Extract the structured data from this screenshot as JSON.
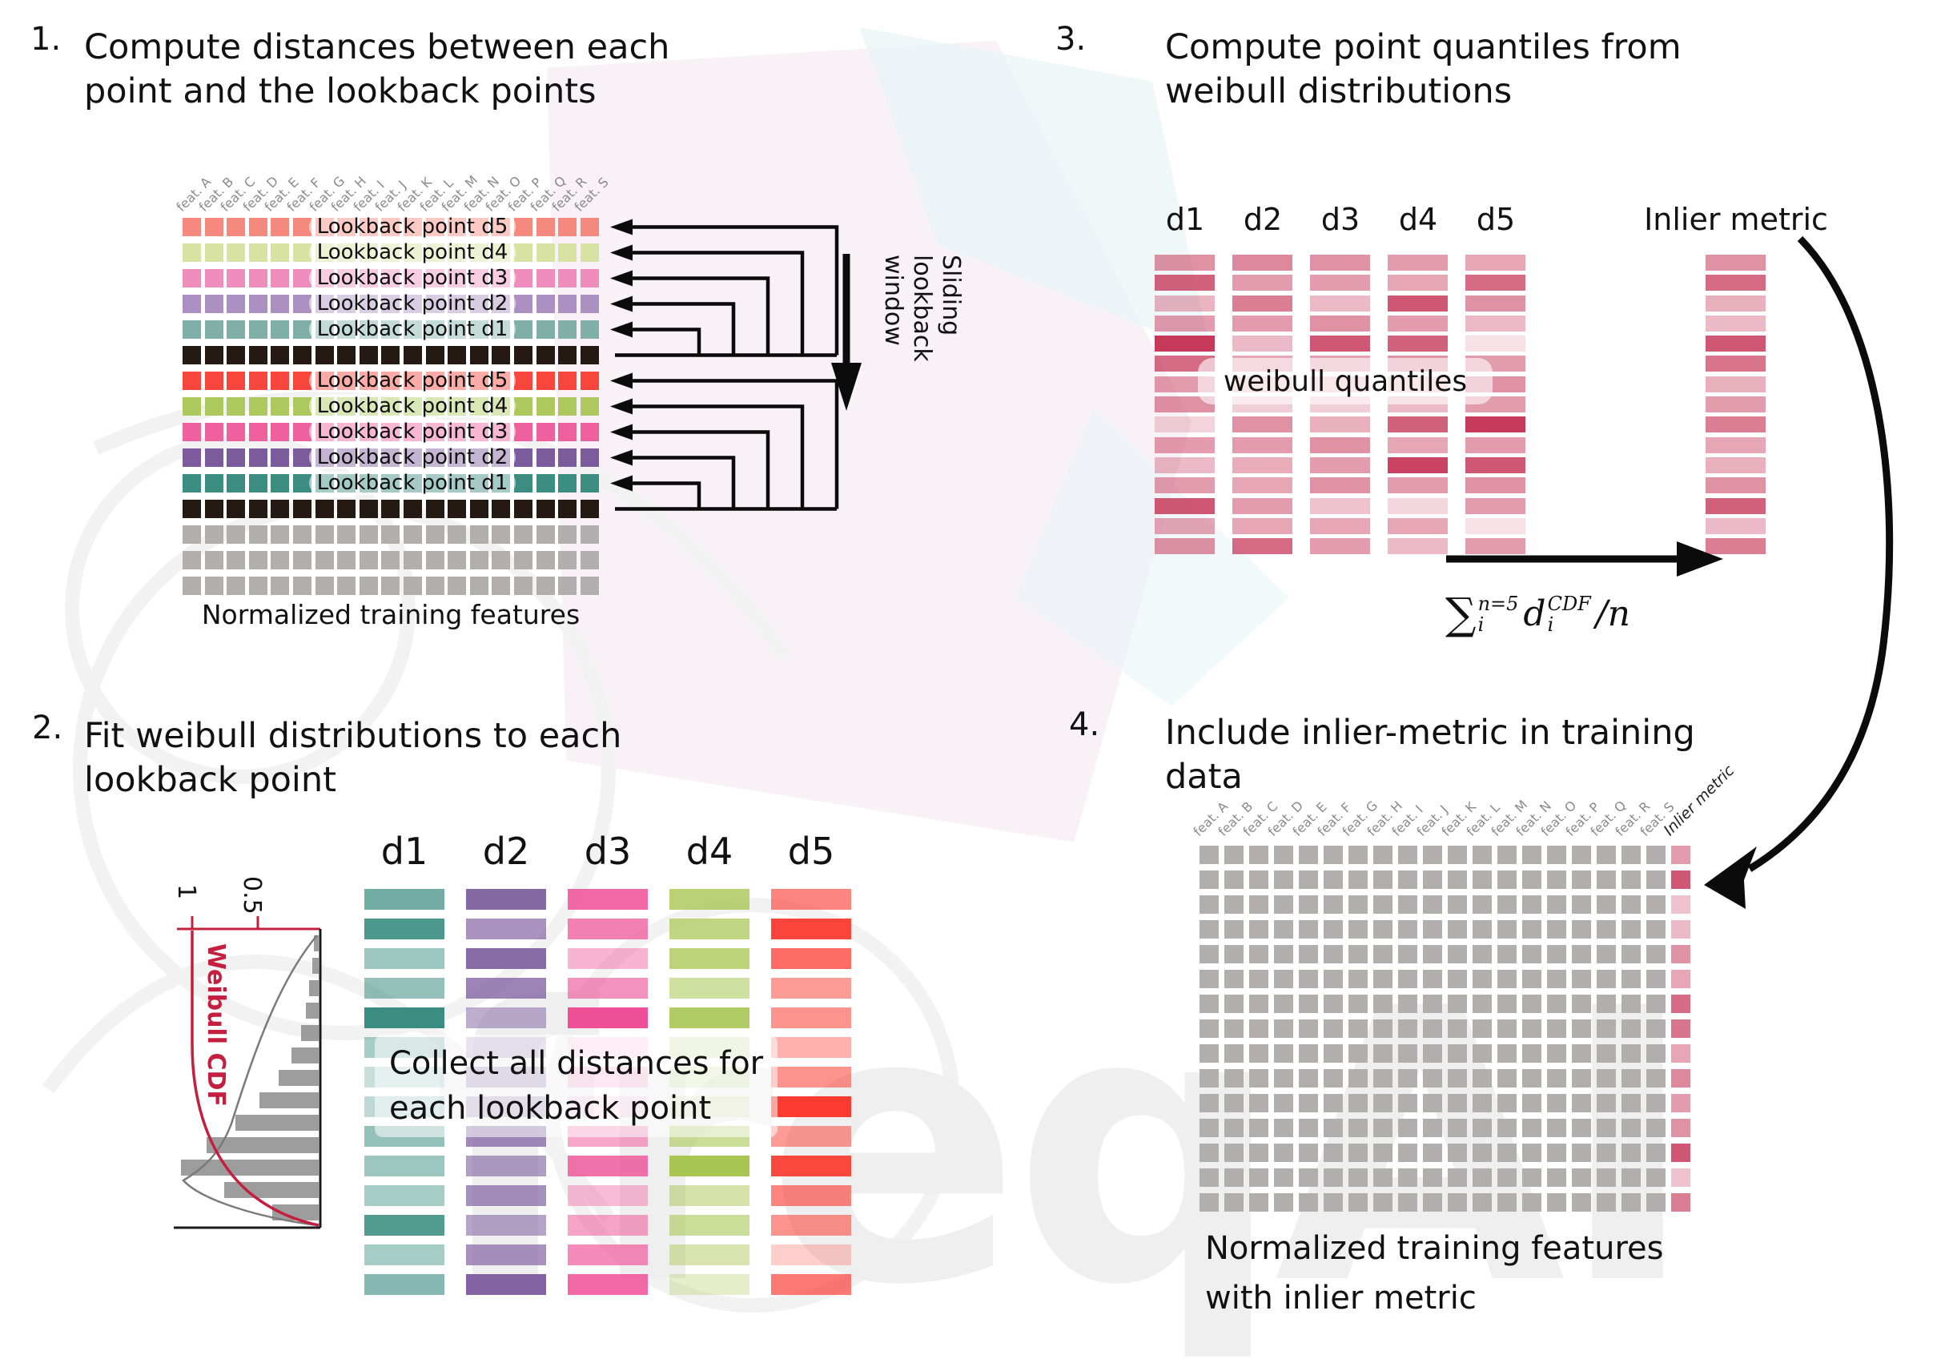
{
  "watermark": {
    "text": "freqAI"
  },
  "features": [
    "feat. A",
    "feat. B",
    "feat. C",
    "feat. D",
    "feat. E",
    "feat. F",
    "feat. G",
    "feat. H",
    "feat. I",
    "feat. J",
    "feat. K",
    "feat. L",
    "feat. M",
    "feat. N",
    "feat. O",
    "feat. P",
    "feat. Q",
    "feat. R",
    "feat. S"
  ],
  "steps": {
    "s1": {
      "number": "1.",
      "title": [
        "Compute distances between each",
        "point and the lookback points"
      ],
      "caption": "Normalized training features",
      "sliding": [
        "Sliding",
        "lookback",
        "window"
      ]
    },
    "s2": {
      "number": "2.",
      "title": [
        "Fit weibull distributions to each",
        "lookback point"
      ],
      "overlay": [
        "Collect all distances for",
        "each lookback point"
      ],
      "plot": {
        "cdf_label": "Weibull CDF",
        "ticks": [
          "1",
          "0.5"
        ]
      }
    },
    "s3": {
      "number": "3.",
      "title": [
        "Compute point quantiles from",
        "weibull distributions"
      ],
      "overlay": "weibull quantiles",
      "inlier_label": "Inlier metric",
      "formula": {
        "sum": "∑",
        "sum_sup": "n=5",
        "sum_sub": "i",
        "d": "d",
        "d_sup": "CDF",
        "d_sub": "i",
        "tail": "/n"
      }
    },
    "s4": {
      "number": "4.",
      "title": [
        "Include inlier-metric in training",
        "data"
      ],
      "caption": [
        "Normalized training features",
        "with inlier metric"
      ],
      "inlier_label": "Inlier metric"
    }
  },
  "colors": {
    "black_row": "#241a13",
    "gray_row": "#b3aeae",
    "crimson": "#c7395b",
    "cdf_red": "#c41f3e",
    "hist_gray": "#8f8f8f",
    "arrow_black": "#0b0b0b",
    "feat_label_gray": "#8a8a8a"
  },
  "grid1": {
    "rows": [
      {
        "color": "#f6897e",
        "label": "Lookback point d5"
      },
      {
        "color": "#d8e2a2",
        "label": "Lookback point d4"
      },
      {
        "color": "#ef8ebc",
        "label": "Lookback point d3"
      },
      {
        "color": "#ab90c1",
        "label": "Lookback point d2"
      },
      {
        "color": "#7fafa7",
        "label": "Lookback point d1"
      },
      {
        "color": "#241a13",
        "label": ""
      },
      {
        "color": "#f9463c",
        "label": "Lookback point d5"
      },
      {
        "color": "#adc95d",
        "label": "Lookback point d4"
      },
      {
        "color": "#ee609e",
        "label": "Lookback point d3"
      },
      {
        "color": "#7c5b9d",
        "label": "Lookback point d2"
      },
      {
        "color": "#3a8d80",
        "label": "Lookback point d1"
      },
      {
        "color": "#241a13",
        "label": ""
      },
      {
        "color": "#b3aeae",
        "label": ""
      },
      {
        "color": "#b3aeae",
        "label": ""
      },
      {
        "color": "#b3aeae",
        "label": ""
      }
    ]
  },
  "grid2": {
    "columns": [
      {
        "name": "d1",
        "color": "#3a8d80",
        "opacities": [
          0.72,
          0.9,
          0.5,
          0.55,
          1.0,
          0.45,
          0.28,
          0.33,
          0.55,
          0.5,
          0.45,
          0.88,
          0.45,
          0.62
        ]
      },
      {
        "name": "d2",
        "color": "#7c5b9d",
        "opacities": [
          0.92,
          0.66,
          0.9,
          0.75,
          0.5,
          0.38,
          0.45,
          0.4,
          0.72,
          0.6,
          0.68,
          0.55,
          0.66,
          0.95
        ]
      },
      {
        "name": "d3",
        "color": "#ee4f96",
        "opacities": [
          0.85,
          0.72,
          0.42,
          0.62,
          1.0,
          0.2,
          0.3,
          0.16,
          0.5,
          0.8,
          0.38,
          0.52,
          0.66,
          0.85
        ]
      },
      {
        "name": "d4",
        "color": "#a9c653",
        "opacities": [
          0.8,
          0.72,
          0.78,
          0.55,
          0.9,
          0.35,
          0.3,
          0.25,
          0.6,
          1.0,
          0.5,
          0.6,
          0.45,
          0.3
        ]
      },
      {
        "name": "d5",
        "color": "#fb3a30",
        "opacities": [
          0.62,
          0.95,
          0.75,
          0.5,
          0.55,
          0.4,
          0.55,
          1.0,
          0.5,
          0.92,
          0.62,
          0.55,
          0.25,
          0.68
        ]
      }
    ]
  },
  "grid3": {
    "bar_color": "#c7395b",
    "columns": [
      {
        "name": "d1",
        "opacities": [
          0.55,
          0.8,
          0.38,
          0.5,
          1.0,
          0.75,
          0.5,
          0.55,
          0.22,
          0.5,
          0.35,
          0.5,
          0.85,
          0.45,
          0.55
        ]
      },
      {
        "name": "d2",
        "opacities": [
          0.6,
          0.5,
          0.65,
          0.5,
          0.35,
          0.45,
          0.3,
          0.25,
          0.55,
          0.5,
          0.42,
          0.45,
          0.5,
          0.45,
          0.75
        ]
      },
      {
        "name": "d3",
        "opacities": [
          0.55,
          0.5,
          0.35,
          0.55,
          0.85,
          0.48,
          0.3,
          0.25,
          0.4,
          0.55,
          0.5,
          0.55,
          0.3,
          0.45,
          0.5
        ]
      },
      {
        "name": "d4",
        "opacities": [
          0.5,
          0.45,
          0.85,
          0.5,
          0.8,
          0.55,
          0.3,
          0.35,
          0.8,
          0.45,
          0.95,
          0.5,
          0.2,
          0.45,
          0.35
        ]
      },
      {
        "name": "d5",
        "opacities": [
          0.45,
          0.75,
          0.55,
          0.35,
          0.15,
          0.5,
          0.55,
          0.5,
          1.0,
          0.5,
          0.85,
          0.55,
          0.5,
          0.15,
          0.5
        ]
      }
    ],
    "inlier_opacities": [
      0.55,
      0.75,
      0.4,
      0.35,
      0.85,
      0.7,
      0.4,
      0.5,
      0.65,
      0.45,
      0.4,
      0.55,
      0.8,
      0.35,
      0.65
    ]
  },
  "grid4": {
    "rows": 15,
    "feature_cols": 19,
    "cell_color": "#b3aeae",
    "inlier_color": "#c7395b",
    "inlier_opacities": [
      0.5,
      0.85,
      0.3,
      0.35,
      0.55,
      0.45,
      0.75,
      0.7,
      0.45,
      0.6,
      0.5,
      0.55,
      0.85,
      0.3,
      0.65
    ]
  },
  "hist": {
    "bar_lengths": [
      6,
      8,
      12,
      16,
      22,
      34,
      50,
      74,
      104,
      140,
      172,
      118,
      58
    ]
  }
}
